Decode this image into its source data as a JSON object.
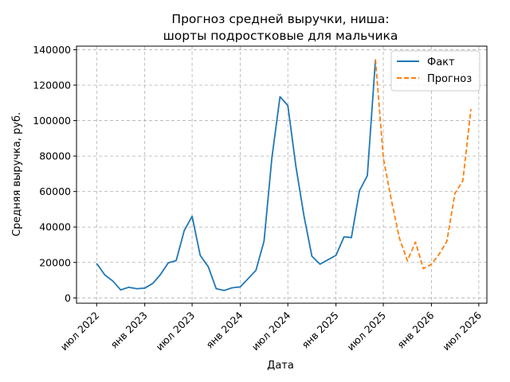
{
  "chart_data": {
    "type": "line",
    "title_lines": [
      "Прогноз средней выручки, ниша:",
      "шорты подростковые для мальчика"
    ],
    "xlabel": "Дата",
    "ylabel": "Средняя выручка, руб.",
    "ylim": [
      -3000,
      142000
    ],
    "y_ticks": [
      0,
      20000,
      40000,
      60000,
      80000,
      100000,
      120000,
      140000
    ],
    "x_ticks": [
      {
        "date": "2022-07",
        "label": "июл 2022"
      },
      {
        "date": "2023-01",
        "label": "янв 2023"
      },
      {
        "date": "2023-07",
        "label": "июл 2023"
      },
      {
        "date": "2024-01",
        "label": "янв 2024"
      },
      {
        "date": "2024-07",
        "label": "июл 2024"
      },
      {
        "date": "2025-01",
        "label": "янв 2025"
      },
      {
        "date": "2025-07",
        "label": "июл 2025"
      },
      {
        "date": "2026-01",
        "label": "янв 2026"
      },
      {
        "date": "2026-07",
        "label": "июл 2026"
      }
    ],
    "xlim": [
      "2022-04-15",
      "2026-08-01"
    ],
    "grid": true,
    "legend_position": "top-right",
    "series": [
      {
        "name": "Факт",
        "color": "#1f77b4",
        "style": "solid",
        "points": [
          [
            "2022-07",
            19500
          ],
          [
            "2022-08",
            13000
          ],
          [
            "2022-09",
            9500
          ],
          [
            "2022-10",
            4500
          ],
          [
            "2022-11",
            6000
          ],
          [
            "2022-12",
            5200
          ],
          [
            "2023-01",
            5500
          ],
          [
            "2023-02",
            8200
          ],
          [
            "2023-03",
            13000
          ],
          [
            "2023-04",
            19800
          ],
          [
            "2023-05",
            21000
          ],
          [
            "2023-06",
            38000
          ],
          [
            "2023-07",
            46000
          ],
          [
            "2023-08",
            24000
          ],
          [
            "2023-09",
            17500
          ],
          [
            "2023-10",
            5200
          ],
          [
            "2023-11",
            4200
          ],
          [
            "2023-12",
            5700
          ],
          [
            "2024-01",
            6200
          ],
          [
            "2024-02",
            11000
          ],
          [
            "2024-03",
            15500
          ],
          [
            "2024-04",
            32000
          ],
          [
            "2024-05",
            79000
          ],
          [
            "2024-06",
            113500
          ],
          [
            "2024-07",
            108500
          ],
          [
            "2024-08",
            74000
          ],
          [
            "2024-09",
            46000
          ],
          [
            "2024-10",
            23500
          ],
          [
            "2024-11",
            19000
          ],
          [
            "2024-12",
            21500
          ],
          [
            "2025-01",
            24000
          ],
          [
            "2025-02",
            34500
          ],
          [
            "2025-03",
            34000
          ],
          [
            "2025-04",
            60500
          ],
          [
            "2025-05",
            69000
          ],
          [
            "2025-06",
            134500
          ]
        ]
      },
      {
        "name": "Прогноз",
        "color": "#ff7f0e",
        "style": "dashed",
        "points": [
          [
            "2025-06",
            134500
          ],
          [
            "2025-07",
            79000
          ],
          [
            "2025-08",
            55000
          ],
          [
            "2025-09",
            33500
          ],
          [
            "2025-10",
            21000
          ],
          [
            "2025-11",
            31500
          ],
          [
            "2025-12",
            16500
          ],
          [
            "2026-01",
            19000
          ],
          [
            "2026-02",
            25000
          ],
          [
            "2026-03",
            32000
          ],
          [
            "2026-04",
            59000
          ],
          [
            "2026-05",
            66000
          ],
          [
            "2026-06",
            106500
          ]
        ]
      }
    ]
  }
}
